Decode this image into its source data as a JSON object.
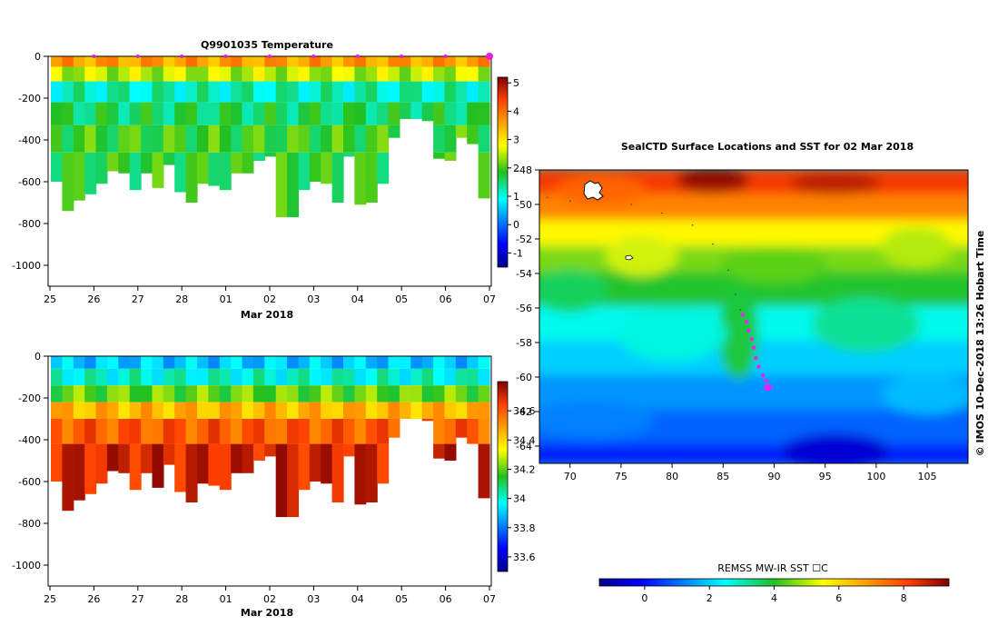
{
  "chart_data": [
    {
      "type": "heatmap",
      "title": "Q9901035  Temperature",
      "x_ticks": [
        "25",
        "26",
        "27",
        "28",
        "01",
        "02",
        "03",
        "04",
        "05",
        "06",
        "07"
      ],
      "x_caption": "Mar 2018",
      "y_ticks": [
        "0",
        "-200",
        "-400",
        "-600",
        "-800",
        "-1000"
      ],
      "ylim": [
        -1100,
        0
      ],
      "colorbar_ticks": [
        "-1",
        "0",
        "1",
        "2",
        "3",
        "4",
        "5"
      ],
      "colorbar_range": [
        -1.5,
        5.2
      ],
      "profile_depths": [
        600,
        740,
        690,
        660,
        610,
        550,
        560,
        640,
        560,
        630,
        520,
        650,
        700,
        610,
        620,
        640,
        560,
        560,
        500,
        480,
        770,
        770,
        640,
        600,
        610,
        700,
        480,
        710,
        700,
        610,
        390,
        300,
        300,
        310,
        490,
        500,
        390,
        420,
        680
      ],
      "layers": [
        {
          "depth": 50,
          "value": 3.6
        },
        {
          "depth": 120,
          "value": 2.5
        },
        {
          "depth": 220,
          "value": 1.2
        },
        {
          "depth": 330,
          "value": 1.6
        },
        {
          "depth": 460,
          "value": 1.9
        },
        {
          "depth": 800,
          "value": 1.8
        }
      ],
      "marker_days": [
        "26",
        "27",
        "28",
        "01",
        "02",
        "03",
        "04",
        "05",
        "06",
        "07"
      ]
    },
    {
      "type": "heatmap",
      "x_ticks": [
        "25",
        "26",
        "27",
        "28",
        "01",
        "02",
        "03",
        "04",
        "05",
        "06",
        "07"
      ],
      "x_caption": "Mar 2018",
      "y_ticks": [
        "0",
        "-200",
        "-400",
        "-600",
        "-800",
        "-1000"
      ],
      "ylim": [
        -1100,
        0
      ],
      "colorbar_ticks": [
        "33.6",
        "33.8",
        "34",
        "34.2",
        "34.4",
        "34.6"
      ],
      "colorbar_range": [
        33.5,
        34.8
      ],
      "layers": [
        {
          "depth": 60,
          "value": 33.9
        },
        {
          "depth": 140,
          "value": 34.0
        },
        {
          "depth": 220,
          "value": 34.2
        },
        {
          "depth": 300,
          "value": 34.45
        },
        {
          "depth": 420,
          "value": 34.6
        },
        {
          "depth": 800,
          "value": 34.7
        }
      ]
    },
    {
      "type": "heatmap",
      "title": "SealCTD Surface Locations and SST for 02 Mar 2018",
      "x_ticks": [
        "70",
        "75",
        "80",
        "85",
        "90",
        "95",
        "100",
        "105"
      ],
      "y_ticks": [
        "-48",
        "-50",
        "-52",
        "-54",
        "-56",
        "-58",
        "-60",
        "-62",
        "-64"
      ],
      "xlim": [
        67,
        109
      ],
      "ylim": [
        -65,
        -48
      ],
      "side_label": "© IMOS 10-Dec-2018 13:26 Hobart Time",
      "colorbar_label": "REMSS MW-IR SST ☐C",
      "colorbar_ticks": [
        "0",
        "2",
        "4",
        "6",
        "8"
      ],
      "colorbar_range": [
        -1.4,
        9.4
      ],
      "track": [
        [
          86.9,
          -56.4
        ],
        [
          87.3,
          -56.8
        ],
        [
          87.5,
          -57.3
        ],
        [
          87.8,
          -57.8
        ],
        [
          88.0,
          -58.3
        ],
        [
          88.2,
          -58.9
        ],
        [
          88.5,
          -59.4
        ],
        [
          88.9,
          -59.9
        ],
        [
          89.2,
          -60.2
        ],
        [
          89.4,
          -60.6
        ]
      ],
      "current_position": [
        89.4,
        -60.6
      ]
    }
  ]
}
